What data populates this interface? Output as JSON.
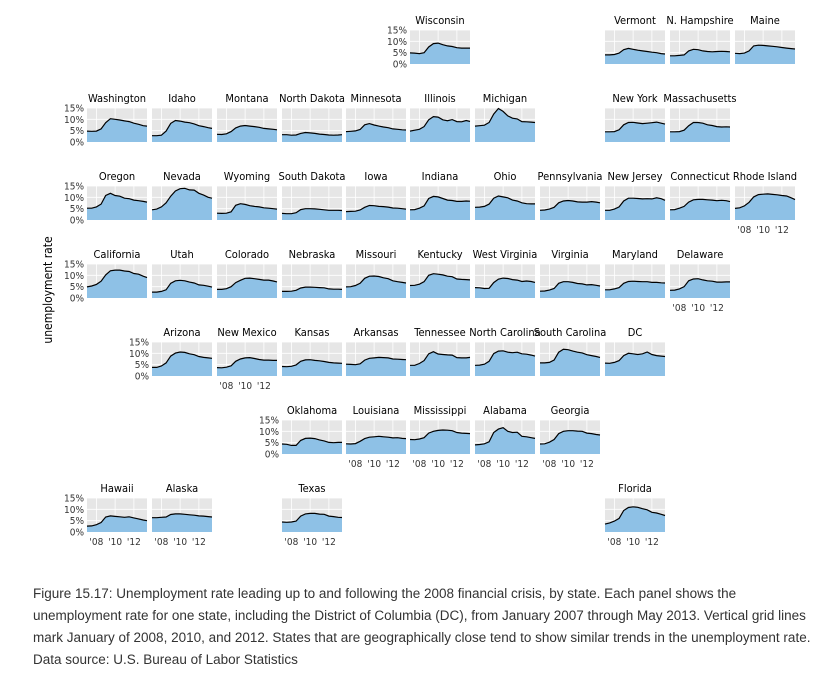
{
  "chart_data": {
    "type": "area",
    "title": "",
    "ylabel": "unemployment rate",
    "ylim": [
      0,
      15
    ],
    "y_ticks": [
      "0%",
      "5%",
      "10%",
      "15%"
    ],
    "x_ticks": [
      "'08",
      "'10",
      "'12"
    ],
    "x_range": [
      "2007-01",
      "2013-05"
    ],
    "grid": true,
    "colors": {
      "fill": "#8ec1e6",
      "line": "#000000",
      "panel": "#e6e6e6",
      "grid": "#ffffff"
    },
    "x": [
      2007.0,
      2007.5,
      2008.0,
      2008.5,
      2009.0,
      2009.5,
      2010.0,
      2010.5,
      2011.0,
      2011.5,
      2012.0,
      2012.5,
      2013.0,
      2013.4
    ],
    "states": [
      {
        "name": "Wisconsin",
        "values": [
          4.9,
          4.8,
          4.6,
          5.0,
          7.5,
          9.0,
          9.2,
          8.5,
          8.0,
          7.7,
          7.2,
          7.0,
          7.0,
          7.0
        ]
      },
      {
        "name": "Vermont",
        "values": [
          4.0,
          4.0,
          4.2,
          4.8,
          6.3,
          6.9,
          6.5,
          6.1,
          5.8,
          5.5,
          5.2,
          5.0,
          4.6,
          4.4
        ]
      },
      {
        "name": "N. Hampshire",
        "values": [
          3.6,
          3.6,
          3.8,
          4.0,
          5.8,
          6.5,
          6.3,
          5.8,
          5.5,
          5.4,
          5.5,
          5.6,
          5.5,
          5.4
        ]
      },
      {
        "name": "Maine",
        "values": [
          4.7,
          4.6,
          4.8,
          5.8,
          8.0,
          8.3,
          8.2,
          8.0,
          7.8,
          7.6,
          7.3,
          7.0,
          6.8,
          6.6
        ]
      },
      {
        "name": "Washington",
        "values": [
          4.8,
          4.7,
          4.8,
          5.8,
          8.5,
          10.3,
          10.0,
          9.7,
          9.3,
          9.0,
          8.3,
          7.8,
          7.2,
          7.0
        ]
      },
      {
        "name": "Idaho",
        "values": [
          2.8,
          2.8,
          3.0,
          4.8,
          8.2,
          9.5,
          9.2,
          8.8,
          8.5,
          8.0,
          7.2,
          6.8,
          6.3,
          6.0
        ]
      },
      {
        "name": "Montana",
        "values": [
          3.4,
          3.3,
          3.6,
          4.6,
          6.2,
          7.0,
          7.3,
          7.0,
          6.8,
          6.5,
          6.0,
          5.8,
          5.6,
          5.4
        ]
      },
      {
        "name": "North Dakota",
        "values": [
          3.2,
          3.2,
          3.0,
          3.1,
          3.8,
          4.2,
          4.0,
          3.8,
          3.5,
          3.3,
          3.1,
          3.0,
          3.1,
          3.2
        ]
      },
      {
        "name": "Minnesota",
        "values": [
          4.6,
          4.7,
          4.9,
          5.5,
          7.6,
          8.1,
          7.5,
          7.0,
          6.6,
          6.3,
          5.8,
          5.6,
          5.4,
          5.3
        ]
      },
      {
        "name": "Illinois",
        "values": [
          4.8,
          5.2,
          5.6,
          6.8,
          9.8,
          11.2,
          11.0,
          9.8,
          9.4,
          9.9,
          9.0,
          8.9,
          9.5,
          9.1
        ]
      },
      {
        "name": "Michigan",
        "values": [
          7.0,
          7.2,
          7.4,
          8.6,
          12.3,
          14.8,
          13.5,
          11.5,
          10.5,
          10.2,
          9.0,
          8.9,
          8.8,
          8.6
        ]
      },
      {
        "name": "New York",
        "values": [
          4.5,
          4.5,
          4.6,
          5.4,
          7.6,
          8.6,
          8.7,
          8.4,
          8.1,
          8.3,
          8.5,
          8.8,
          8.3,
          7.9
        ]
      },
      {
        "name": "Massachusetts",
        "values": [
          4.5,
          4.5,
          4.6,
          5.2,
          7.2,
          8.6,
          8.6,
          8.3,
          7.6,
          7.3,
          6.8,
          6.6,
          6.7,
          6.6
        ]
      },
      {
        "name": "Oregon",
        "values": [
          5.2,
          5.2,
          5.8,
          7.0,
          10.8,
          11.8,
          10.8,
          10.5,
          9.6,
          9.4,
          8.8,
          8.5,
          8.2,
          7.9
        ]
      },
      {
        "name": "Nevada",
        "values": [
          4.5,
          4.8,
          5.8,
          7.6,
          10.5,
          12.8,
          13.8,
          14.0,
          13.3,
          13.2,
          11.8,
          11.0,
          10.0,
          9.6
        ]
      },
      {
        "name": "Wyoming",
        "values": [
          3.0,
          2.9,
          3.0,
          3.6,
          6.5,
          7.2,
          6.9,
          6.3,
          6.0,
          5.8,
          5.4,
          5.2,
          5.0,
          4.8
        ]
      },
      {
        "name": "South Dakota",
        "values": [
          2.9,
          2.8,
          2.8,
          3.2,
          4.6,
          5.0,
          5.0,
          4.9,
          4.7,
          4.5,
          4.3,
          4.3,
          4.3,
          4.2
        ]
      },
      {
        "name": "Iowa",
        "values": [
          3.7,
          3.8,
          3.9,
          4.4,
          5.6,
          6.4,
          6.3,
          6.0,
          5.9,
          5.7,
          5.3,
          5.2,
          5.0,
          4.8
        ]
      },
      {
        "name": "Indiana",
        "values": [
          4.5,
          4.6,
          5.2,
          6.2,
          9.5,
          10.4,
          10.2,
          9.5,
          8.8,
          8.6,
          8.2,
          8.2,
          8.4,
          8.3
        ]
      },
      {
        "name": "Ohio",
        "values": [
          5.6,
          5.7,
          6.0,
          7.0,
          9.6,
          10.6,
          10.2,
          9.8,
          8.8,
          8.4,
          7.6,
          7.2,
          7.1,
          7.1
        ]
      },
      {
        "name": "Pennsylvania",
        "values": [
          4.3,
          4.4,
          4.8,
          5.6,
          7.6,
          8.4,
          8.6,
          8.4,
          8.0,
          7.9,
          7.9,
          8.1,
          7.9,
          7.6
        ]
      },
      {
        "name": "New Jersey",
        "values": [
          4.3,
          4.3,
          4.8,
          5.8,
          8.4,
          9.6,
          9.6,
          9.5,
          9.3,
          9.4,
          9.3,
          9.8,
          9.4,
          8.7
        ]
      },
      {
        "name": "Connecticut",
        "values": [
          4.5,
          4.6,
          5.2,
          6.0,
          7.9,
          8.9,
          9.1,
          9.1,
          8.9,
          8.8,
          8.5,
          8.7,
          8.5,
          8.1
        ]
      },
      {
        "name": "Rhode Island",
        "values": [
          5.1,
          5.4,
          6.2,
          7.8,
          10.2,
          11.2,
          11.4,
          11.5,
          11.3,
          11.1,
          10.8,
          10.6,
          9.8,
          9.0
        ]
      },
      {
        "name": "California",
        "values": [
          4.9,
          5.3,
          6.0,
          7.4,
          10.2,
          12.0,
          12.3,
          12.3,
          11.9,
          11.7,
          10.8,
          10.5,
          9.6,
          9.0
        ]
      },
      {
        "name": "Utah",
        "values": [
          2.6,
          2.6,
          2.9,
          3.6,
          6.5,
          7.6,
          7.8,
          7.6,
          7.0,
          6.6,
          5.8,
          5.6,
          5.2,
          4.8
        ]
      },
      {
        "name": "Colorado",
        "values": [
          3.8,
          3.8,
          4.1,
          5.0,
          6.8,
          7.8,
          8.7,
          8.8,
          8.5,
          8.2,
          7.9,
          7.9,
          7.5,
          7.1
        ]
      },
      {
        "name": "Nebraska",
        "values": [
          2.9,
          2.9,
          3.0,
          3.4,
          4.4,
          4.8,
          4.8,
          4.7,
          4.6,
          4.5,
          4.0,
          3.9,
          3.9,
          3.8
        ]
      },
      {
        "name": "Missouri",
        "values": [
          4.9,
          5.0,
          5.5,
          6.5,
          8.7,
          9.6,
          9.7,
          9.5,
          8.9,
          8.5,
          7.6,
          7.2,
          6.9,
          6.6
        ]
      },
      {
        "name": "Kentucky",
        "values": [
          5.5,
          5.6,
          6.1,
          7.2,
          10.0,
          10.7,
          10.5,
          10.2,
          9.6,
          9.4,
          8.4,
          8.2,
          8.1,
          8.0
        ]
      },
      {
        "name": "West Virginia",
        "values": [
          4.6,
          4.5,
          4.2,
          4.3,
          6.8,
          8.3,
          8.8,
          8.6,
          8.1,
          7.9,
          7.3,
          7.5,
          7.3,
          6.9
        ]
      },
      {
        "name": "Virginia",
        "values": [
          3.0,
          3.1,
          3.5,
          4.2,
          6.5,
          7.2,
          7.2,
          6.9,
          6.4,
          6.2,
          5.8,
          5.9,
          5.6,
          5.3
        ]
      },
      {
        "name": "Maryland",
        "values": [
          3.6,
          3.6,
          4.0,
          4.6,
          6.5,
          7.3,
          7.4,
          7.3,
          7.2,
          7.2,
          6.9,
          6.9,
          6.7,
          6.6
        ]
      },
      {
        "name": "Delaware",
        "values": [
          3.4,
          3.5,
          4.0,
          5.0,
          7.6,
          8.4,
          8.5,
          8.0,
          7.6,
          7.4,
          7.0,
          7.0,
          7.1,
          7.1
        ]
      },
      {
        "name": "Arizona",
        "values": [
          3.8,
          3.8,
          4.4,
          5.8,
          8.8,
          10.1,
          10.6,
          10.4,
          9.8,
          9.4,
          8.6,
          8.2,
          8.0,
          7.8
        ]
      },
      {
        "name": "New Mexico",
        "values": [
          3.7,
          3.6,
          3.9,
          4.5,
          6.5,
          7.5,
          8.0,
          8.1,
          7.7,
          7.3,
          7.0,
          7.0,
          6.9,
          6.9
        ]
      },
      {
        "name": "Kansas",
        "values": [
          4.2,
          4.1,
          4.3,
          4.9,
          6.5,
          7.1,
          7.2,
          6.9,
          6.7,
          6.4,
          6.0,
          5.8,
          5.7,
          5.6
        ]
      },
      {
        "name": "Arkansas",
        "values": [
          5.2,
          5.1,
          5.0,
          5.4,
          7.0,
          7.8,
          8.0,
          8.2,
          8.1,
          8.0,
          7.5,
          7.4,
          7.3,
          7.2
        ]
      },
      {
        "name": "Tennessee",
        "values": [
          4.7,
          4.7,
          5.5,
          6.8,
          9.8,
          10.7,
          9.7,
          9.5,
          9.3,
          9.2,
          8.1,
          8.0,
          8.0,
          8.2
        ]
      },
      {
        "name": "North Carolina",
        "values": [
          4.7,
          4.8,
          5.2,
          6.5,
          9.9,
          11.0,
          11.1,
          10.5,
          10.3,
          10.5,
          9.8,
          9.6,
          9.2,
          8.8
        ]
      },
      {
        "name": "South Carolina",
        "values": [
          5.8,
          5.8,
          6.0,
          7.0,
          10.5,
          11.8,
          11.6,
          11.0,
          10.5,
          10.2,
          9.4,
          9.0,
          8.6,
          8.2
        ]
      },
      {
        "name": "DC",
        "values": [
          5.7,
          5.6,
          6.0,
          6.8,
          9.0,
          10.0,
          9.8,
          9.5,
          9.8,
          10.6,
          9.5,
          9.0,
          8.8,
          8.6
        ]
      },
      {
        "name": "Oklahoma",
        "values": [
          4.4,
          4.3,
          3.8,
          3.8,
          6.0,
          6.9,
          7.0,
          6.8,
          6.2,
          5.8,
          5.1,
          5.0,
          5.1,
          5.1
        ]
      },
      {
        "name": "Louisiana",
        "values": [
          4.5,
          4.4,
          4.6,
          5.6,
          6.8,
          7.4,
          7.6,
          7.8,
          7.6,
          7.4,
          7.1,
          7.2,
          6.9,
          6.8
        ]
      },
      {
        "name": "Mississippi",
        "values": [
          6.4,
          6.3,
          6.6,
          7.2,
          9.2,
          10.0,
          10.4,
          10.6,
          10.5,
          10.3,
          9.5,
          9.2,
          9.1,
          9.0
        ]
      },
      {
        "name": "Alabama",
        "values": [
          4.0,
          4.2,
          4.5,
          5.4,
          9.5,
          11.0,
          11.6,
          10.0,
          9.5,
          9.6,
          7.8,
          7.6,
          7.2,
          6.9
        ]
      },
      {
        "name": "Georgia",
        "values": [
          4.4,
          4.5,
          5.2,
          6.4,
          9.0,
          10.0,
          10.3,
          10.3,
          10.1,
          10.0,
          9.2,
          9.0,
          8.6,
          8.4
        ]
      },
      {
        "name": "Hawaii",
        "values": [
          2.6,
          2.7,
          3.2,
          4.2,
          6.6,
          7.1,
          6.9,
          6.7,
          6.5,
          6.7,
          6.2,
          5.8,
          5.3,
          5.0
        ]
      },
      {
        "name": "Alaska",
        "values": [
          6.3,
          6.3,
          6.5,
          6.6,
          7.7,
          8.0,
          8.0,
          7.8,
          7.6,
          7.4,
          7.1,
          7.0,
          6.8,
          6.6
        ]
      },
      {
        "name": "Texas",
        "values": [
          4.4,
          4.3,
          4.4,
          4.8,
          7.0,
          8.0,
          8.2,
          8.2,
          7.9,
          7.8,
          7.0,
          6.8,
          6.5,
          6.4
        ]
      },
      {
        "name": "Florida",
        "values": [
          3.5,
          4.0,
          4.8,
          6.0,
          9.5,
          10.8,
          11.1,
          10.9,
          10.3,
          9.8,
          8.7,
          8.4,
          7.8,
          7.3
        ]
      }
    ]
  },
  "caption": "Figure 15.17: Unemployment rate leading up to and following the 2008 financial crisis, by state. Each panel shows the unemployment rate for one state, including the District of Columbia (DC), from January 2007 through May 2013. Vertical grid lines mark January of 2008, 2010, and 2012. States that are geographically close tend to show similar trends in the unemployment rate. Data source: U.S. Bureau of Labor Statistics"
}
